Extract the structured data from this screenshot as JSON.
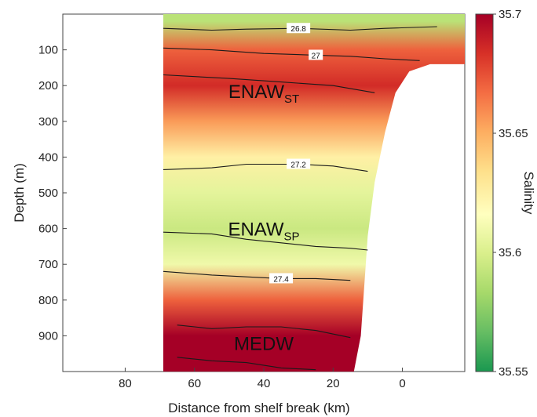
{
  "chart_data": {
    "type": "heatmap",
    "title": "",
    "xlabel": "Distance from shelf break (km)",
    "ylabel": "Depth (m)",
    "xlim": [
      98,
      -18
    ],
    "ylim": [
      0,
      1000
    ],
    "x_ticks": [
      "80",
      "60",
      "40",
      "20",
      "0"
    ],
    "x_tick_values": [
      80,
      60,
      40,
      20,
      0
    ],
    "y_ticks": [
      "100",
      "200",
      "300",
      "400",
      "500",
      "600",
      "700",
      "800",
      "900"
    ],
    "y_tick_values": [
      100,
      200,
      300,
      400,
      500,
      600,
      700,
      800,
      900
    ],
    "colorbar": {
      "label": "Salinity",
      "min": 35.55,
      "max": 35.7,
      "ticks": [
        "35.55",
        "35.6",
        "35.65",
        "35.7"
      ],
      "tick_values": [
        35.55,
        35.6,
        35.65,
        35.7
      ],
      "colormap": "RdYlGn (reversed)",
      "colors": [
        "#1a9850",
        "#66bd63",
        "#a6d96a",
        "#d9ef8b",
        "#ffffbf",
        "#fee08b",
        "#fdae61",
        "#f46d43",
        "#d73027",
        "#a50026"
      ]
    },
    "data_extent": {
      "x_offshore_km": 69,
      "bottom_depth_profile": [
        {
          "x": 69,
          "depth": 1000
        },
        {
          "x": 14,
          "depth": 1000
        },
        {
          "x": 12,
          "depth": 900
        },
        {
          "x": 10,
          "depth": 620
        },
        {
          "x": 8,
          "depth": 470
        },
        {
          "x": 5,
          "depth": 330
        },
        {
          "x": 2,
          "depth": 220
        },
        {
          "x": -2,
          "depth": 160
        },
        {
          "x": -8,
          "depth": 140
        },
        {
          "x": -18,
          "depth": 140
        }
      ]
    },
    "salinity_profile": [
      {
        "depth": 20,
        "salinity": 35.59
      },
      {
        "depth": 100,
        "salinity": 35.67
      },
      {
        "depth": 200,
        "salinity": 35.685
      },
      {
        "depth": 300,
        "salinity": 35.655
      },
      {
        "depth": 400,
        "salinity": 35.625
      },
      {
        "depth": 500,
        "salinity": 35.605
      },
      {
        "depth": 600,
        "salinity": 35.595
      },
      {
        "depth": 700,
        "salinity": 35.61
      },
      {
        "depth": 800,
        "salinity": 35.67
      },
      {
        "depth": 900,
        "salinity": 35.7
      },
      {
        "depth": 1000,
        "salinity": 35.7
      }
    ],
    "contours": [
      {
        "label": "26.8",
        "points": [
          [
            69,
            40
          ],
          [
            55,
            45
          ],
          [
            45,
            42
          ],
          [
            30,
            40
          ],
          [
            15,
            45
          ],
          [
            5,
            40
          ],
          [
            -10,
            35
          ]
        ]
      },
      {
        "label": "27",
        "points": [
          [
            69,
            95
          ],
          [
            55,
            100
          ],
          [
            40,
            110
          ],
          [
            25,
            115
          ],
          [
            15,
            118
          ],
          [
            5,
            125
          ],
          [
            -5,
            130
          ]
        ]
      },
      {
        "label": "",
        "points": [
          [
            69,
            170
          ],
          [
            50,
            180
          ],
          [
            35,
            190
          ],
          [
            20,
            200
          ],
          [
            8,
            220
          ]
        ]
      },
      {
        "label": "27.2",
        "points": [
          [
            69,
            435
          ],
          [
            55,
            430
          ],
          [
            45,
            420
          ],
          [
            30,
            420
          ],
          [
            20,
            425
          ],
          [
            10,
            440
          ]
        ]
      },
      {
        "label": "",
        "points": [
          [
            69,
            610
          ],
          [
            55,
            615
          ],
          [
            45,
            630
          ],
          [
            35,
            640
          ],
          [
            25,
            650
          ],
          [
            15,
            655
          ],
          [
            10,
            660
          ]
        ]
      },
      {
        "label": "27.4",
        "points": [
          [
            69,
            720
          ],
          [
            55,
            730
          ],
          [
            45,
            735
          ],
          [
            35,
            740
          ],
          [
            25,
            740
          ],
          [
            15,
            745
          ]
        ]
      },
      {
        "label": "",
        "points": [
          [
            65,
            870
          ],
          [
            55,
            880
          ],
          [
            45,
            875
          ],
          [
            35,
            875
          ],
          [
            25,
            885
          ],
          [
            15,
            905
          ]
        ]
      },
      {
        "label": "",
        "points": [
          [
            65,
            960
          ],
          [
            55,
            970
          ],
          [
            45,
            975
          ],
          [
            35,
            990
          ],
          [
            25,
            995
          ]
        ]
      }
    ],
    "annotations": [
      {
        "main": "ENAW",
        "sub": "ST",
        "x": 40,
        "depth": 235
      },
      {
        "main": "ENAW",
        "sub": "SP",
        "x": 40,
        "depth": 620
      },
      {
        "main": "MEDW",
        "sub": "",
        "x": 40,
        "depth": 940
      }
    ]
  }
}
